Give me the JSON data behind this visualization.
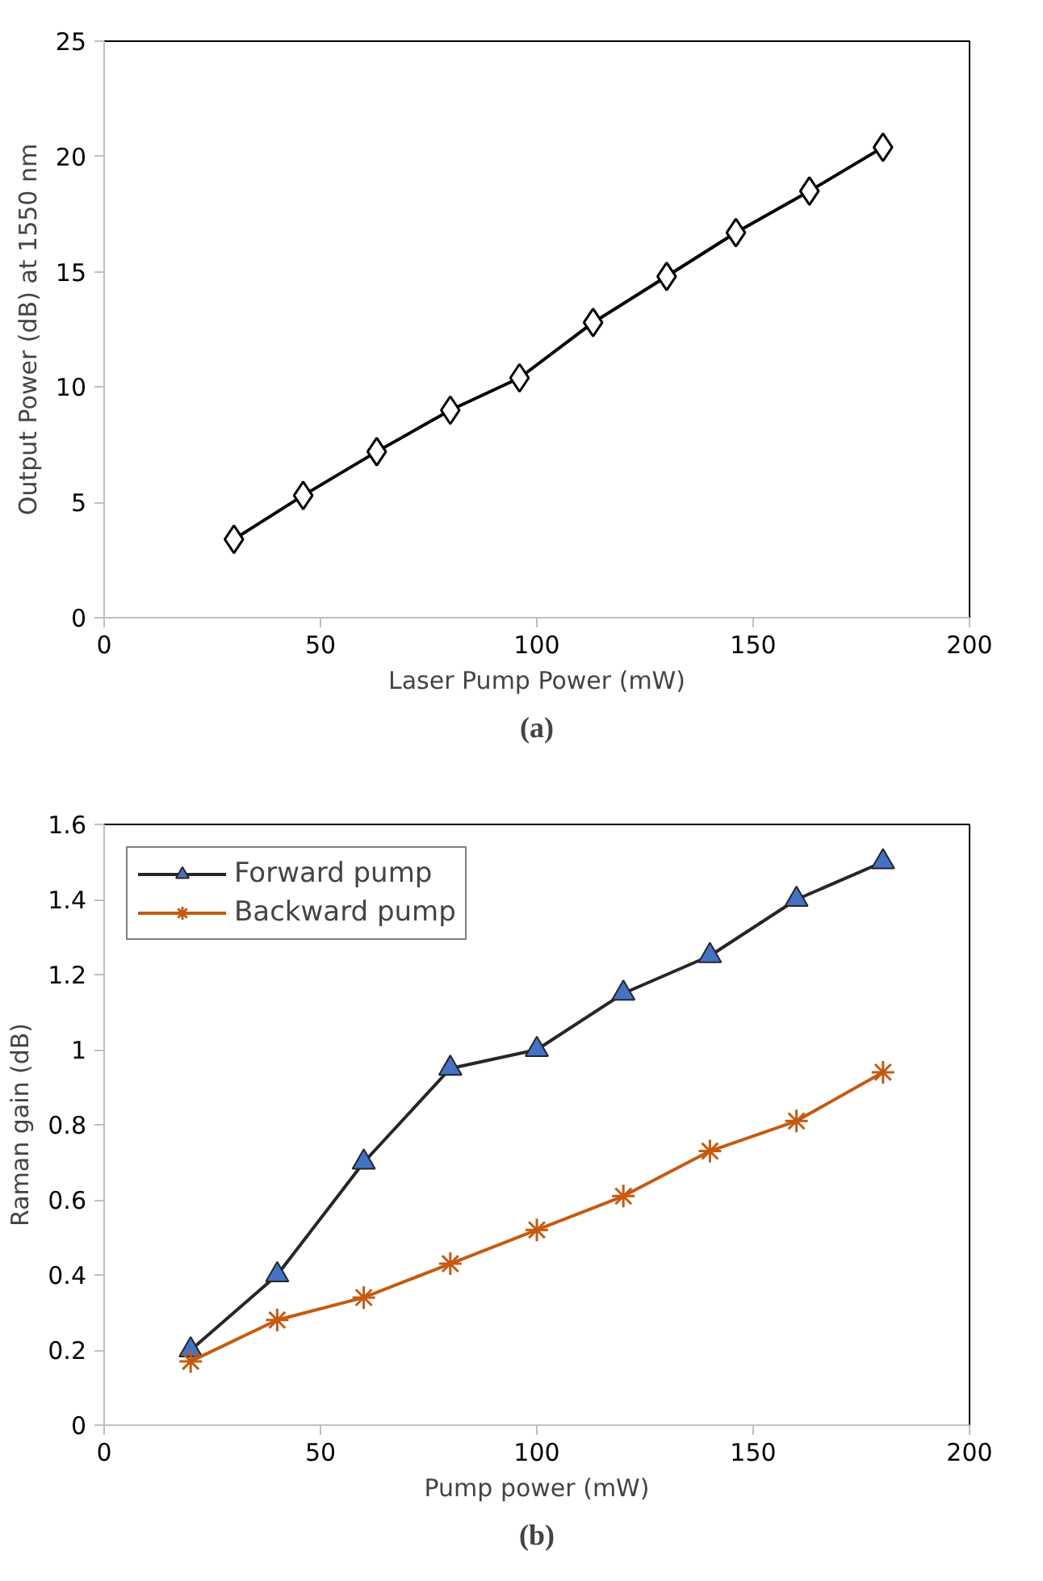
{
  "chart_data": [
    {
      "type": "line",
      "xlabel": "Laser Pump Power (mW)",
      "ylabel": "Output Power (dB) at 1550 nm",
      "xlim": [
        0,
        200
      ],
      "ylim": [
        0,
        25
      ],
      "xticks": [
        0,
        50,
        100,
        150,
        200
      ],
      "yticks": [
        0,
        5,
        10,
        15,
        20,
        25
      ],
      "grid": false,
      "legend": false,
      "marker": "diamond",
      "line_style": "solid",
      "annotations": [
        "(a)"
      ],
      "series": [
        {
          "color": "#000000",
          "x": [
            30,
            46,
            63,
            80,
            96,
            113,
            130,
            146,
            163,
            180
          ],
          "values": [
            3.4,
            5.3,
            7.2,
            9.0,
            10.4,
            12.8,
            14.8,
            16.7,
            18.5,
            20.4
          ]
        }
      ]
    },
    {
      "type": "line",
      "xlabel": "Pump power (mW)",
      "ylabel": "Raman gain (dB)",
      "xlim": [
        0,
        200
      ],
      "ylim": [
        0,
        1.6
      ],
      "xticks": [
        0,
        50,
        100,
        150,
        200
      ],
      "yticks": [
        0,
        0.2,
        0.4,
        0.6,
        0.8,
        1,
        1.2,
        1.4,
        1.6
      ],
      "grid": false,
      "legend": "top left",
      "line_style": "solid",
      "annotations": [
        "(b)"
      ],
      "x": [
        20,
        40,
        60,
        80,
        100,
        120,
        140,
        160,
        180
      ],
      "series": [
        {
          "name": "Forward pump",
          "color": "#4472c4",
          "marker": "triangle",
          "values": [
            0.2,
            0.4,
            0.7,
            0.95,
            1.0,
            1.15,
            1.25,
            1.4,
            1.5
          ]
        },
        {
          "name": "Backward pump",
          "color": "#c55a11",
          "marker": "cross",
          "values": [
            0.17,
            0.28,
            0.34,
            0.43,
            0.52,
            0.61,
            0.73,
            0.81,
            0.94
          ]
        }
      ]
    }
  ]
}
